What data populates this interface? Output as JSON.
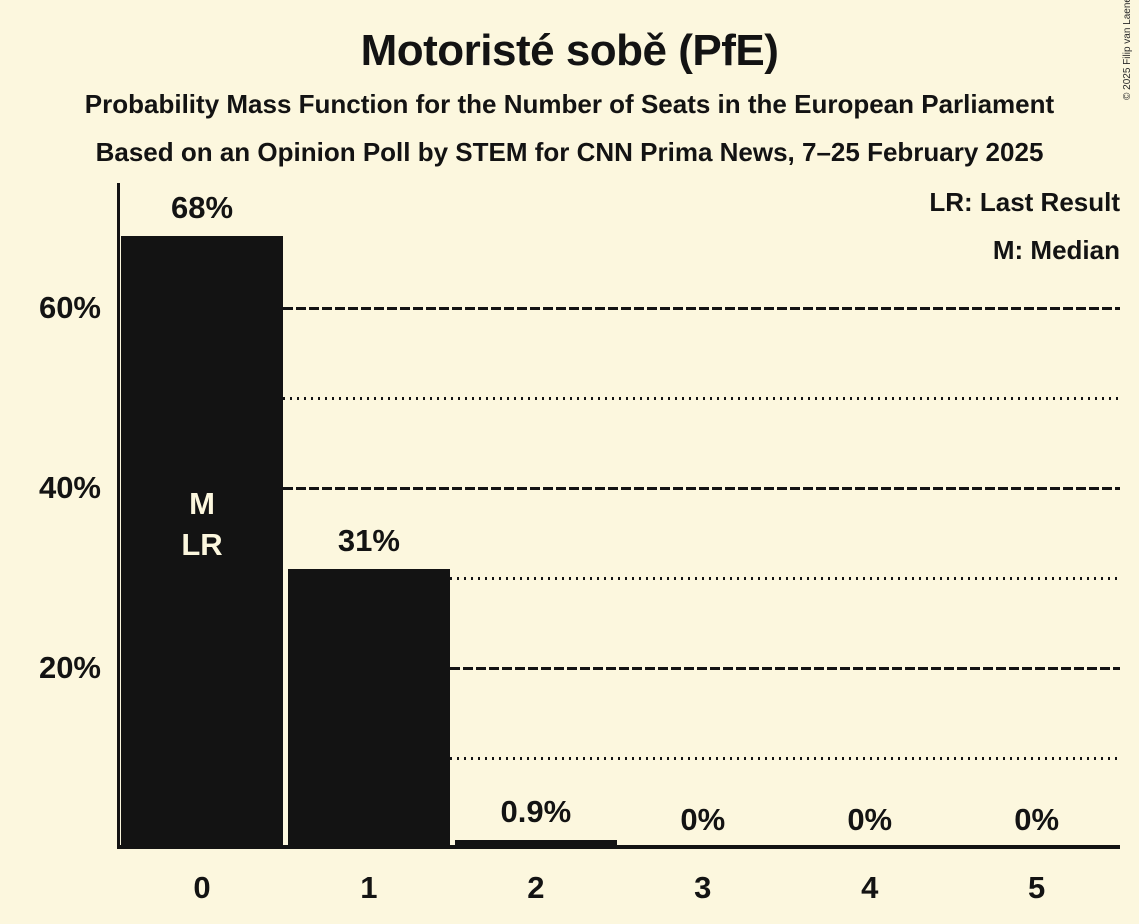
{
  "title": "Motoristé sobě (PfE)",
  "subtitle_line1": "Probability Mass Function for the Number of Seats in the European Parliament",
  "subtitle_line2": "Based on an Opinion Poll by STEM for CNN Prima News, 7–25 February 2025",
  "legend": {
    "last_result": "LR: Last Result",
    "median": "M: Median"
  },
  "copyright": "© 2025 Filip van Laenen",
  "colors": {
    "background": "#FCF7DE",
    "bar": "#131313",
    "text": "#131313",
    "bar_annotation_text": "#FCF7DE"
  },
  "chart_data": {
    "type": "bar",
    "title": "Motoristé sobě (PfE)",
    "categories": [
      "0",
      "1",
      "2",
      "3",
      "4",
      "5"
    ],
    "values": [
      68,
      31,
      0.9,
      0,
      0,
      0
    ],
    "value_labels": [
      "68%",
      "31%",
      "0.9%",
      "0%",
      "0%",
      "0%"
    ],
    "xlabel": "",
    "ylabel": "",
    "ylim": [
      0,
      74
    ],
    "yticks": [
      {
        "value": 20,
        "label": "20%"
      },
      {
        "value": 40,
        "label": "40%"
      },
      {
        "value": 60,
        "label": "60%"
      }
    ],
    "minor_gridlines": [
      10,
      30,
      50
    ],
    "grid": "horizontal; major ticks dashed, minor ticks dotted; lines start right of the bars that exceed them",
    "legend_position": "top-right",
    "annotations": [
      {
        "bar_index": 0,
        "lines": [
          "M",
          "LR"
        ]
      }
    ]
  }
}
